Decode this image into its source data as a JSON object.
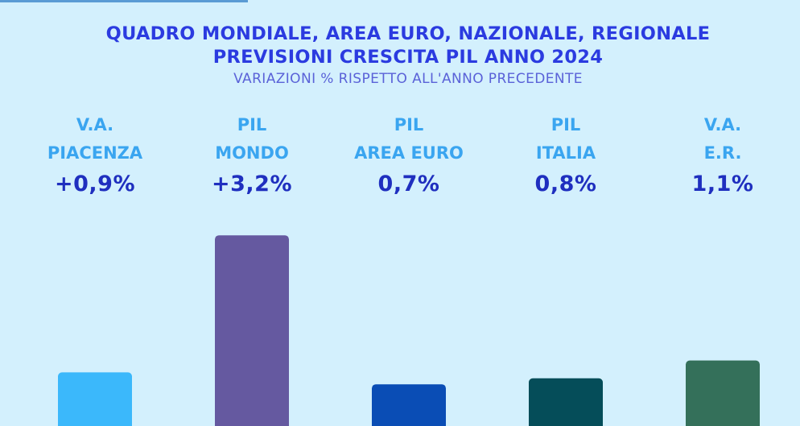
{
  "title_line1": "QUADRO MONDIALE, AREA EURO, NAZIONALE, REGIONALE",
  "title_line2": "PREVISIONI CRESCITA PIL ANNO 2024",
  "subtitle": "VARIAZIONI % RISPETTO ALL'ANNO PRECEDENTE",
  "label_color": "#3aa5f0",
  "chart_data": {
    "type": "bar",
    "title": "QUADRO MONDIALE, AREA EURO, NAZIONALE, REGIONALE PREVISIONI CRESCITA PIL ANNO 2024",
    "subtitle": "VARIAZIONI % RISPETTO ALL'ANNO PRECEDENTE",
    "categories": [
      {
        "line1": "V.A.",
        "line2": "PIACENZA"
      },
      {
        "line1": "PIL",
        "line2": "MONDO"
      },
      {
        "line1": "PIL",
        "line2": "AREA EURO"
      },
      {
        "line1": "PIL",
        "line2": "ITALIA"
      },
      {
        "line1": "V.A.",
        "line2": "E.R."
      }
    ],
    "value_labels": [
      "+0,9%",
      "+3,2%",
      "0,7%",
      "0,8%",
      "1,1%"
    ],
    "values": [
      0.9,
      3.2,
      0.7,
      0.8,
      1.1
    ],
    "unit": "%",
    "colors": [
      "#3bb8fb",
      "#6559a0",
      "#0a4db5",
      "#054d59",
      "#34705a"
    ],
    "grid": false,
    "legend": "none"
  }
}
